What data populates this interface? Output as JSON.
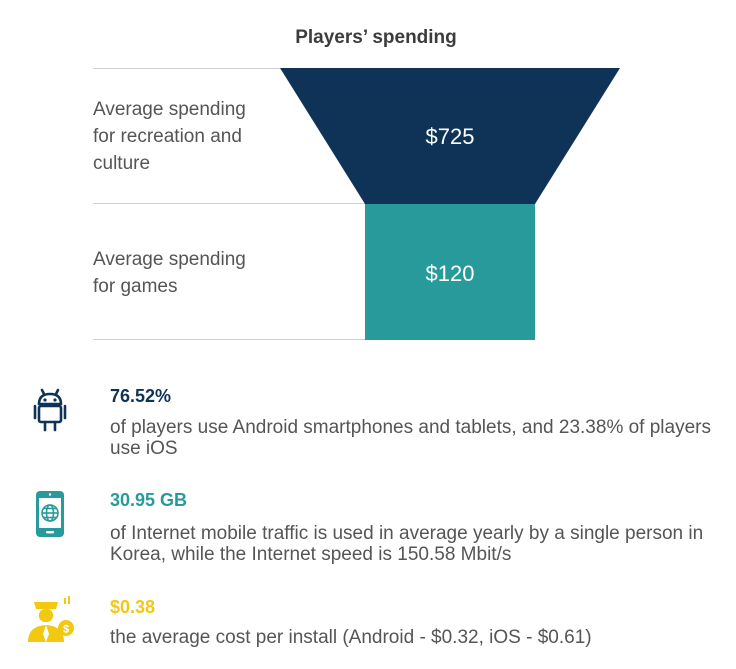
{
  "chart_data": {
    "type": "funnel",
    "title": "Players’ spending",
    "stages": [
      {
        "label": "Average spending\nfor recreation and\nculture",
        "value": 725,
        "display": "$725",
        "color": "#0f3357"
      },
      {
        "label": "Average spending\nfor games",
        "value": 120,
        "display": "$120",
        "color": "#289a9c"
      }
    ]
  },
  "stats": [
    {
      "icon": "android-icon",
      "value": "76.52%",
      "color": "#0f3357",
      "description": "of players use Android smartphones and tablets, and 23.38% of players use iOS"
    },
    {
      "icon": "mobile-globe-icon",
      "value": "30.95 GB",
      "color": "#289a9c",
      "description": "of Internet mobile traffic is used in average yearly by a single person in  Korea, while the Internet speed is 150.58 Mbit/s"
    },
    {
      "icon": "businessman-dollar-icon",
      "value": "$0.38",
      "color": "#f2c811",
      "description": "the average cost per install (Android - $0.32, iOS - $0.61)"
    }
  ]
}
